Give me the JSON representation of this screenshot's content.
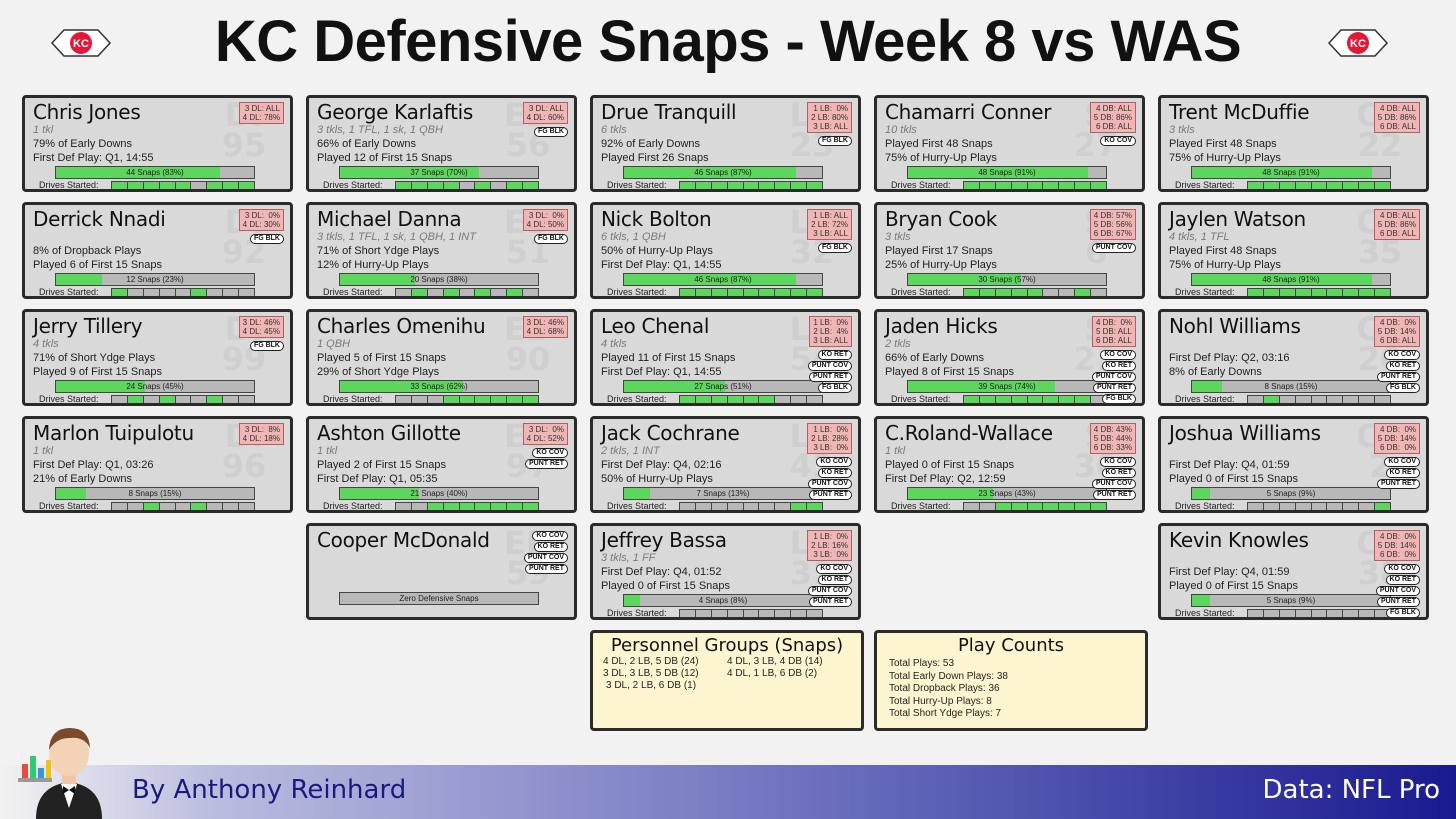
{
  "header": {
    "title": "KC Defensive Snaps - Week 8 vs WAS"
  },
  "footer": {
    "byline": "By Anthony Reinhard",
    "source": "Data: NFL Pro"
  },
  "logo": {
    "text": "KC"
  },
  "labels": {
    "drives": "Drives Started:"
  },
  "colors": {
    "card_bg": "#d9d9d9",
    "bar_fill": "#5cd65c",
    "alignment_bg": "#f0b5b5",
    "info_bg": "#fdf5d0",
    "footer_dark": "#1a1a90"
  },
  "players": [
    {
      "name": "Chris Jones",
      "pos": "DI",
      "num": "95",
      "tkl": "1 tkl",
      "stat1": "79% of Early Downs",
      "stat2": "First Def Play: Q1, 14:55",
      "alignment": "3 DL: ALL\n4 DL: 78%",
      "tags": [],
      "bar": "44 Snaps (83%)",
      "pct": 0.83,
      "drives": [
        1,
        1,
        1,
        1,
        1,
        0,
        1,
        1,
        1
      ]
    },
    {
      "name": "George Karlaftis",
      "pos": "ED",
      "num": "56",
      "tkl": "3 tkls, 1 TFL, 1 sk, 1 QBH",
      "stat1": "66% of Early Downs",
      "stat2": "Played 12 of First 15 Snaps",
      "alignment": "3 DL: ALL\n4 DL: 60%",
      "tags": [
        "FG BLK"
      ],
      "bar": "37 Snaps (70%)",
      "pct": 0.7,
      "drives": [
        1,
        1,
        1,
        1,
        0,
        1,
        0,
        1,
        1
      ]
    },
    {
      "name": "Drue Tranquill",
      "pos": "LB",
      "num": "23",
      "tkl": "6 tkls",
      "stat1": "92% of Early Downs",
      "stat2": "Played First 26 Snaps",
      "alignment": "1 LB:  0%\n2 LB: 80%\n3 LB: ALL",
      "tags": [
        "FG BLK"
      ],
      "bar": "46 Snaps (87%)",
      "pct": 0.87,
      "drives": [
        1,
        1,
        1,
        1,
        1,
        1,
        1,
        1,
        1
      ]
    },
    {
      "name": "Chamarri Conner",
      "pos": "S",
      "num": "27",
      "tkl": "10 tkls",
      "stat1": "Played First 48 Snaps",
      "stat2": "75% of Hurry-Up Plays",
      "alignment": "4 DB: ALL\n5 DB: 86%\n6 DB: ALL",
      "tags": [
        "KO COV"
      ],
      "bar": "48 Snaps (91%)",
      "pct": 0.91,
      "drives": [
        1,
        1,
        1,
        1,
        1,
        1,
        1,
        1,
        1
      ]
    },
    {
      "name": "Trent McDuffie",
      "pos": "CB",
      "num": "22",
      "tkl": "3 tkls",
      "stat1": "Played First 48 Snaps",
      "stat2": "75% of Hurry-Up Plays",
      "alignment": "4 DB: ALL\n5 DB: 86%\n6 DB: ALL",
      "tags": [],
      "bar": "48 Snaps (91%)",
      "pct": 0.91,
      "drives": [
        1,
        1,
        1,
        1,
        1,
        1,
        1,
        1,
        1
      ]
    },
    {
      "name": "Derrick Nnadi",
      "pos": "DI",
      "num": "92",
      "tkl": "",
      "stat1": "8% of Dropback Plays",
      "stat2": "Played 6 of First 15 Snaps",
      "alignment": "3 DL:  0%\n4 DL: 30%",
      "tags": [
        "FG BLK"
      ],
      "bar": "12 Snaps (23%)",
      "pct": 0.23,
      "drives": [
        1,
        0,
        0,
        0,
        0,
        1,
        0,
        0,
        0
      ]
    },
    {
      "name": "Michael Danna",
      "pos": "ED",
      "num": "51",
      "tkl": "3 tkls, 1 TFL, 1 sk, 1 QBH, 1 INT",
      "stat1": "71% of Short Ydge Plays",
      "stat2": "12% of Hurry-Up Plays",
      "alignment": "3 DL:  0%\n4 DL: 50%",
      "tags": [
        "FG BLK"
      ],
      "bar": "20 Snaps (38%)",
      "pct": 0.38,
      "drives": [
        0,
        1,
        0,
        1,
        0,
        1,
        0,
        1,
        0
      ]
    },
    {
      "name": "Nick Bolton",
      "pos": "LB",
      "num": "32",
      "tkl": "6 tkls, 1 QBH",
      "stat1": "50% of Hurry-Up Plays",
      "stat2": "First Def Play: Q1, 14:55",
      "alignment": "1 LB: ALL\n2 LB: 72%\n3 LB: ALL",
      "tags": [
        "FG BLK"
      ],
      "bar": "46 Snaps (87%)",
      "pct": 0.87,
      "drives": [
        1,
        1,
        1,
        1,
        1,
        1,
        1,
        1,
        1
      ]
    },
    {
      "name": "Bryan Cook",
      "pos": "S",
      "num": "6",
      "tkl": "3 tkls",
      "stat1": "Played First 17 Snaps",
      "stat2": "25% of Hurry-Up Plays",
      "alignment": "4 DB: 57%\n5 DB: 56%\n6 DB: 67%",
      "tags": [
        "PUNT COV"
      ],
      "bar": "30 Snaps (57%)",
      "pct": 0.57,
      "drives": [
        1,
        1,
        1,
        1,
        1,
        0,
        0,
        1,
        0
      ]
    },
    {
      "name": "Jaylen Watson",
      "pos": "CB",
      "num": "35",
      "tkl": "4 tkls, 1 TFL",
      "stat1": "Played First 48 Snaps",
      "stat2": "75% of Hurry-Up Plays",
      "alignment": "4 DB: ALL\n5 DB: 86%\n6 DB: ALL",
      "tags": [],
      "bar": "48 Snaps (91%)",
      "pct": 0.91,
      "drives": [
        1,
        1,
        1,
        1,
        1,
        1,
        1,
        1,
        1
      ]
    },
    {
      "name": "Jerry Tillery",
      "pos": "DI",
      "num": "99",
      "tkl": "4 tkls",
      "stat1": "71% of Short Ydge Plays",
      "stat2": "Played 9 of First 15 Snaps",
      "alignment": "3 DL: 46%\n4 DL: 45%",
      "tags": [
        "FG BLK"
      ],
      "bar": "24 Snaps (45%)",
      "pct": 0.45,
      "drives": [
        0,
        1,
        0,
        1,
        0,
        0,
        1,
        0,
        0
      ]
    },
    {
      "name": "Charles Omenihu",
      "pos": "ED",
      "num": "90",
      "tkl": "1 QBH",
      "stat1": "Played 5 of First 15 Snaps",
      "stat2": "29% of Short Ydge Plays",
      "alignment": "3 DL: 46%\n4 DL: 68%",
      "tags": [],
      "bar": "33 Snaps (62%)",
      "pct": 0.62,
      "drives": [
        0,
        0,
        0,
        1,
        1,
        1,
        1,
        1,
        1
      ]
    },
    {
      "name": "Leo Chenal",
      "pos": "LB",
      "num": "54",
      "tkl": "4 tkls",
      "stat1": "Played 11 of First 15 Snaps",
      "stat2": "First Def Play: Q1, 14:55",
      "alignment": "1 LB:  0%\n2 LB:  4%\n3 LB: ALL",
      "tags": [
        "KO RET",
        "PUNT COV",
        "PUNT RET",
        "FG BLK"
      ],
      "bar": "27 Snaps (51%)",
      "pct": 0.51,
      "drives": [
        1,
        1,
        1,
        1,
        1,
        1,
        0,
        0,
        0
      ]
    },
    {
      "name": "Jaden Hicks",
      "pos": "S",
      "num": "21",
      "tkl": "2 tkls",
      "stat1": "66% of Early Downs",
      "stat2": "Played 8 of First 15 Snaps",
      "alignment": "4 DB:  0%\n5 DB: ALL\n6 DB: ALL",
      "tags": [
        "KO COV",
        "KO RET",
        "PUNT COV",
        "PUNT RET",
        "FG BLK"
      ],
      "bar": "39 Snaps (74%)",
      "pct": 0.74,
      "drives": [
        1,
        1,
        1,
        1,
        1,
        1,
        1,
        1,
        0
      ]
    },
    {
      "name": "Nohl Williams",
      "pos": "CB",
      "num": "20",
      "tkl": "",
      "stat1": "First Def Play: Q2, 03:16",
      "stat2": "8% of Early Downs",
      "alignment": "4 DB:  0%\n5 DB: 14%\n6 DB: ALL",
      "tags": [
        "KO COV",
        "KO RET",
        "PUNT RET",
        "FG BLK"
      ],
      "bar": "8 Snaps (15%)",
      "pct": 0.15,
      "drives": [
        0,
        1,
        0,
        0,
        0,
        0,
        0,
        0,
        0
      ]
    },
    {
      "name": "Marlon Tuipulotu",
      "pos": "DI",
      "num": "96",
      "tkl": "1 tkl",
      "stat1": "First Def Play: Q1, 03:26",
      "stat2": "21% of Early Downs",
      "alignment": "3 DL:  8%\n4 DL: 18%",
      "tags": [],
      "bar": "8 Snaps (15%)",
      "pct": 0.15,
      "drives": [
        0,
        0,
        1,
        0,
        0,
        1,
        0,
        0,
        0
      ]
    },
    {
      "name": "Ashton Gillotte",
      "pos": "ED",
      "num": "97",
      "tkl": "1 tkl",
      "stat1": "Played 2 of First 15 Snaps",
      "stat2": "First Def Play: Q1, 05:35",
      "alignment": "3 DL:  0%\n4 DL: 52%",
      "tags": [
        "KO COV",
        "PUNT RET"
      ],
      "bar": "21 Snaps (40%)",
      "pct": 0.4,
      "drives": [
        0,
        0,
        1,
        1,
        1,
        1,
        1,
        1,
        1
      ]
    },
    {
      "name": "Jack Cochrane",
      "pos": "LB",
      "num": "43",
      "tkl": "2 tkls, 1 INT",
      "stat1": "First Def Play: Q4, 02:16",
      "stat2": "50% of Hurry-Up Plays",
      "alignment": "1 LB:  0%\n2 LB: 28%\n3 LB:  0%",
      "tags": [
        "KO COV",
        "KO RET",
        "PUNT COV",
        "PUNT RET"
      ],
      "bar": "7 Snaps (13%)",
      "pct": 0.13,
      "drives": [
        0,
        0,
        0,
        0,
        0,
        0,
        0,
        1,
        1
      ]
    },
    {
      "name": "C.Roland-Wallace",
      "pos": "S",
      "num": "30",
      "tkl": "1 tkl",
      "stat1": "Played 0 of First 15 Snaps",
      "stat2": "First Def Play: Q2, 12:59",
      "alignment": "4 DB: 43%\n5 DB: 44%\n6 DB: 33%",
      "tags": [
        "KO COV",
        "KO RET",
        "PUNT COV",
        "PUNT RET"
      ],
      "bar": "23 Snaps (43%)",
      "pct": 0.43,
      "drives": [
        0,
        0,
        1,
        1,
        1,
        1,
        1,
        1,
        1
      ]
    },
    {
      "name": "Joshua Williams",
      "pos": "CB",
      "num": "2",
      "tkl": "",
      "stat1": "First Def Play: Q4, 01:59",
      "stat2": "Played 0 of First 15 Snaps",
      "alignment": "4 DB:  0%\n5 DB: 14%\n6 DB:  0%",
      "tags": [
        "KO COV",
        "KO RET",
        "PUNT RET"
      ],
      "bar": "5 Snaps (9%)",
      "pct": 0.09,
      "drives": [
        0,
        0,
        0,
        0,
        0,
        0,
        0,
        0,
        1
      ]
    },
    {
      "name": "Cooper McDonald",
      "pos": "ED",
      "num": "59",
      "tkl": "",
      "stat1": "",
      "stat2": "",
      "alignment": "",
      "tags": [
        "KO COV",
        "KO RET",
        "PUNT COV",
        "PUNT RET"
      ],
      "bar": "Zero Defensive Snaps",
      "pct": 0,
      "drives": []
    },
    {
      "name": "Jeffrey Bassa",
      "pos": "LB",
      "num": "31",
      "tkl": "3 tkls, 1 FF",
      "stat1": "First Def Play: Q4, 01:52",
      "stat2": "Played 0 of First 15 Snaps",
      "alignment": "1 LB:  0%\n2 LB: 16%\n3 LB:  0%",
      "tags": [
        "KO COV",
        "KO RET",
        "PUNT COV",
        "PUNT RET"
      ],
      "bar": "4 Snaps (8%)",
      "pct": 0.08,
      "drives": [
        0,
        0,
        0,
        0,
        0,
        0,
        0,
        0,
        0
      ]
    },
    {
      "name": "Kevin Knowles",
      "pos": "CB",
      "num": "38",
      "tkl": "",
      "stat1": "First Def Play: Q4, 01:59",
      "stat2": "Played 0 of First 15 Snaps",
      "alignment": "4 DB:  0%\n5 DB: 14%\n6 DB:  0%",
      "tags": [
        "KO COV",
        "KO RET",
        "PUNT COV",
        "PUNT RET",
        "FG BLK"
      ],
      "bar": "5 Snaps (9%)",
      "pct": 0.09,
      "drives": [
        0,
        0,
        0,
        0,
        0,
        0,
        0,
        0,
        0
      ]
    }
  ],
  "personnel": {
    "title": "Personnel Groups (Snaps)",
    "items": [
      "4 DL, 2 LB, 5 DB (24)",
      "4 DL, 3 LB, 4 DB (14)",
      "3 DL, 3 LB, 5 DB (12)",
      "4 DL, 1 LB, 6 DB (2)",
      "3 DL, 2 LB, 6 DB (1)"
    ]
  },
  "play_counts": {
    "title": "Play Counts",
    "items": [
      "Total Plays: 53",
      "Total Early Down Plays: 38",
      "Total Dropback Plays: 36",
      "Total Hurry-Up Plays: 8",
      "Total Short Ydge Plays: 7"
    ]
  }
}
